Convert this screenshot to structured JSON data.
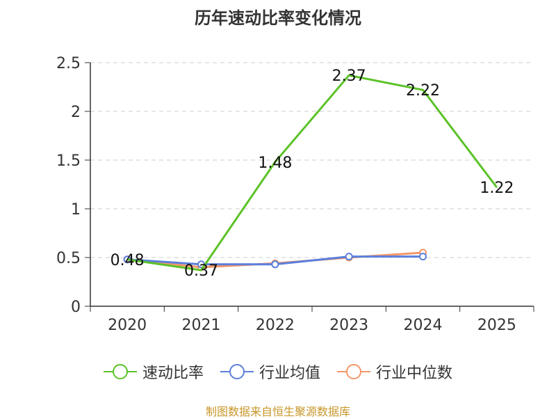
{
  "chart_data": {
    "type": "line",
    "title": "历年速动比率变化情况",
    "categories": [
      "2020",
      "2021",
      "2022",
      "2023",
      "2024",
      "2025"
    ],
    "ylim": [
      0,
      2.5
    ],
    "yticks": [
      "0",
      "0.5",
      "1",
      "1.5",
      "2",
      "2.5"
    ],
    "series": [
      {
        "name": "速动比率",
        "color": "#5bc227",
        "values": [
          0.48,
          0.37,
          1.48,
          2.37,
          2.22,
          1.22
        ],
        "labels": [
          "0.48",
          "0.37",
          "1.48",
          "2.37",
          "2.22",
          "1.22"
        ]
      },
      {
        "name": "行业均值",
        "color": "#5b7fdb",
        "values": [
          0.48,
          0.43,
          0.43,
          0.51,
          0.51,
          null
        ]
      },
      {
        "name": "行业中位数",
        "color": "#f4976a",
        "values": [
          0.48,
          0.4,
          0.44,
          0.5,
          0.55,
          null
        ]
      }
    ],
    "grid": true,
    "legend_position": "bottom"
  },
  "source": "制图数据来自恒生聚源数据库"
}
